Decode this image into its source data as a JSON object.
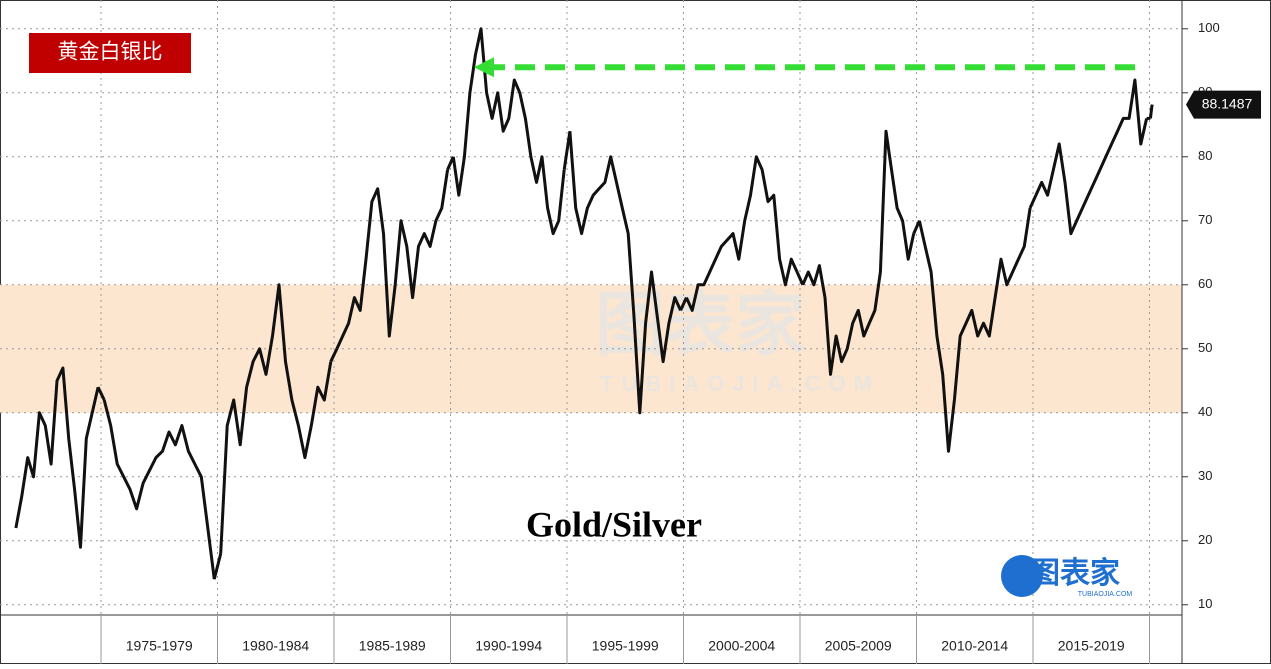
{
  "chart_data": {
    "type": "line",
    "title": "黄金白银比",
    "annotation": "Gold/Silver",
    "watermark": [
      "图表家",
      "TUBIAOJIA.COM"
    ],
    "color": "#111111",
    "last_label": "88.1487",
    "periods": [
      {
        "label": null,
        "values": [
          22,
          27,
          33,
          30,
          40,
          38,
          32,
          45,
          47,
          36,
          28,
          19,
          36,
          40,
          44
        ]
      },
      {
        "label": "1975-1979",
        "values": [
          42,
          38,
          32,
          30,
          28,
          25,
          29,
          31,
          33,
          34,
          37,
          35,
          38,
          34,
          32,
          30,
          22,
          14
        ]
      },
      {
        "label": "1980-1984",
        "values": [
          18,
          38,
          42,
          35,
          44,
          48,
          50,
          46,
          52,
          60,
          48,
          42,
          38,
          33,
          38,
          44,
          42,
          48
        ]
      },
      {
        "label": "1985-1989",
        "values": [
          50,
          52,
          54,
          58,
          56,
          64,
          73,
          75,
          68,
          52,
          60,
          70,
          66,
          58,
          66,
          68,
          66,
          70,
          72,
          78
        ]
      },
      {
        "label": "1990-1994",
        "values": [
          80,
          74,
          80,
          90,
          96,
          100,
          90,
          86,
          90,
          84,
          86,
          92,
          90,
          86,
          80,
          76,
          80,
          72,
          68,
          70,
          78
        ]
      },
      {
        "label": "1995-1999",
        "values": [
          84,
          72,
          68,
          72,
          74,
          75,
          76,
          80,
          76,
          72,
          68,
          55,
          40,
          54,
          62,
          55,
          48,
          54,
          58,
          56
        ]
      },
      {
        "label": "2000-2004",
        "values": [
          58,
          56,
          60,
          60,
          62,
          64,
          66,
          67,
          68,
          64,
          70,
          74,
          80,
          78,
          73,
          74,
          64,
          60,
          64,
          62
        ]
      },
      {
        "label": "2005-2009",
        "values": [
          60,
          62,
          60,
          63,
          58,
          46,
          52,
          48,
          50,
          54,
          56,
          52,
          54,
          56,
          62,
          84,
          78,
          72,
          70,
          64,
          68
        ]
      },
      {
        "label": "2010-2014",
        "values": [
          70,
          66,
          62,
          52,
          46,
          34,
          42,
          52,
          54,
          56,
          52,
          54,
          52,
          58,
          64,
          60,
          62,
          64,
          66,
          72
        ]
      },
      {
        "label": "2015-2019",
        "values": [
          74,
          76,
          74,
          78,
          82,
          76,
          68,
          70,
          72,
          74,
          76,
          78,
          80,
          82,
          84,
          86,
          86,
          92,
          82,
          86
        ]
      },
      {
        "label": null,
        "values": [
          86,
          88.1487
        ]
      }
    ],
    "band": {
      "range": [
        40,
        60
      ],
      "color": "#fde6cf"
    },
    "highlight_level": {
      "value": 94,
      "color": "#33dd33"
    },
    "ylim": [
      8.4,
      104.5
    ],
    "yticks": [
      10,
      20,
      30,
      40,
      50,
      60,
      70,
      80,
      90,
      100
    ],
    "grid": true
  }
}
